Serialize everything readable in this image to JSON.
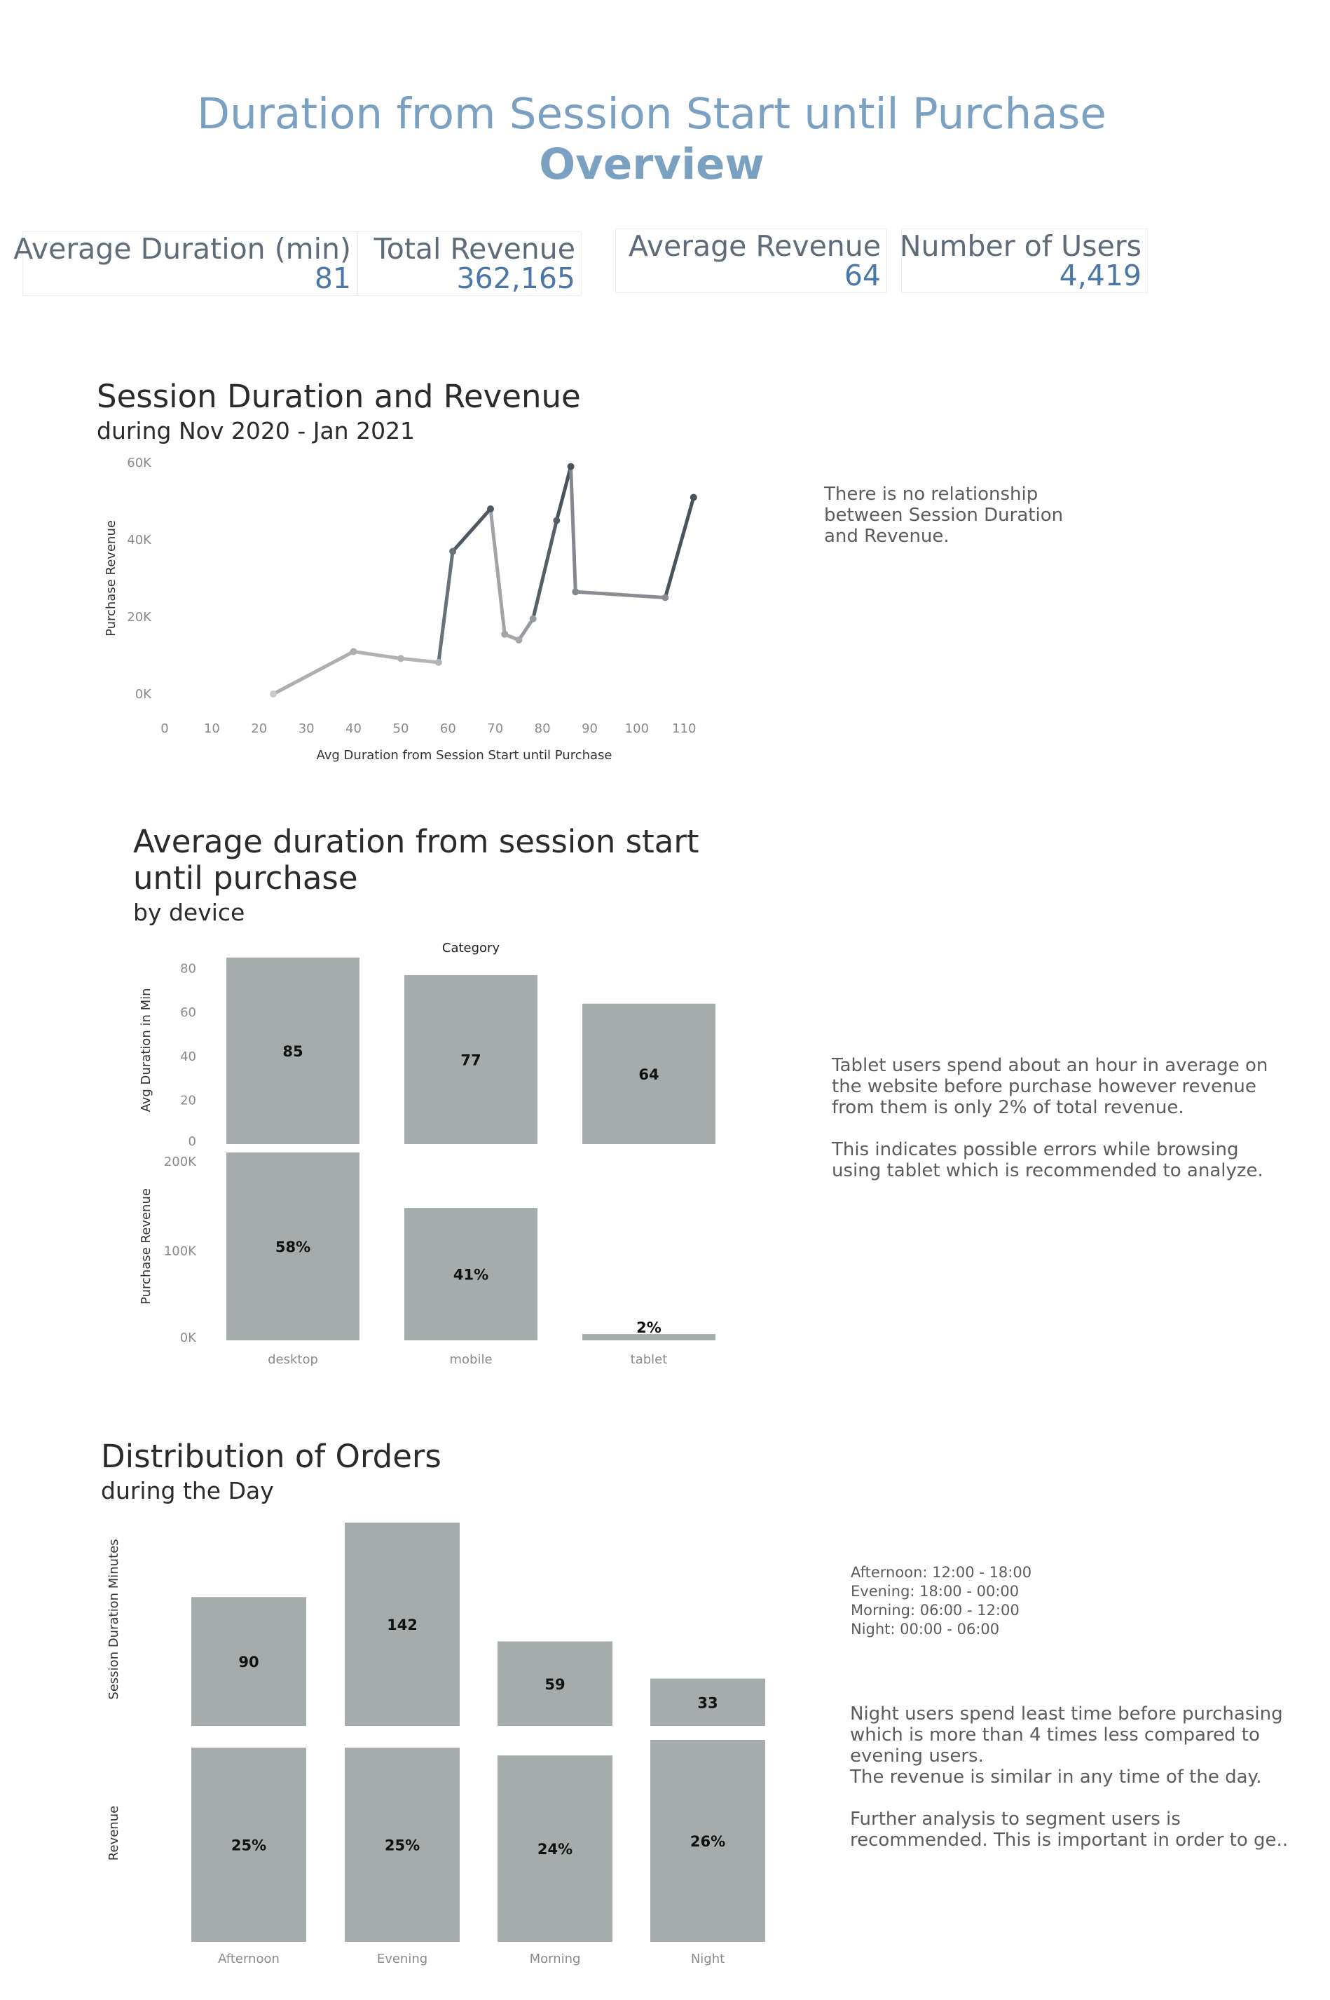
{
  "header": {
    "title": "Duration from Session Start until Purchase",
    "subtitle": "Overview"
  },
  "kpis": [
    {
      "label": "Average Duration (min)",
      "value": "81"
    },
    {
      "label": "Total Revenue",
      "value": "362,165"
    },
    {
      "label": "Average Revenue",
      "value": "64"
    },
    {
      "label": "Number of Users",
      "value": "4,419"
    }
  ],
  "section1": {
    "title": "Session Duration and Revenue",
    "subtitle": "during Nov 2020 - Jan 2021",
    "note": "There is no relationship\nbetween Session Duration\nand Revenue."
  },
  "section2": {
    "title_line1": "Average duration from session start",
    "title_line2": "until purchase",
    "subtitle": "by device",
    "note": "Tablet users spend about an hour in average on\nthe website before purchase however revenue\nfrom them is only 2% of total revenue.\n\nThis indicates possible errors while browsing\nusing tablet which is recommended to analyze."
  },
  "section3": {
    "title": "Distribution of Orders",
    "subtitle": "during the Day",
    "legend_note": "Afternoon: 12:00 - 18:00\nEvening: 18:00 - 00:00\nMorning: 06:00 - 12:00\nNight: 00:00 - 06:00",
    "note": "Night users spend least time before purchasing\nwhich is more than 4 times less compared to\nevening users.\nThe revenue is similar in any time of the day.\n\nFurther analysis to segment users is\nrecommended. This is important in order to ge.."
  },
  "colors": {
    "bar": "#a6acac",
    "line_dark": "#4a525c",
    "line_light": "#c8c8c8",
    "axis_text": "#8a8a8a",
    "title_accent": "#7aa0c2",
    "kpi_value": "#4b77a6"
  },
  "chart_data": [
    {
      "type": "line",
      "xlabel": "Avg Duration from Session Start until Purchase",
      "ylabel": "Purchase Revenue",
      "xlim": [
        0,
        115
      ],
      "ylim": [
        0,
        60000
      ],
      "x_ticks": [
        "0",
        "10",
        "20",
        "30",
        "40",
        "50",
        "60",
        "70",
        "80",
        "90",
        "100",
        "110"
      ],
      "y_ticks": [
        "0K",
        "20K",
        "40K",
        "60K"
      ],
      "points": [
        {
          "x": 23,
          "y": 0
        },
        {
          "x": 40,
          "y": 11000
        },
        {
          "x": 50,
          "y": 9200
        },
        {
          "x": 58,
          "y": 8200
        },
        {
          "x": 61,
          "y": 37000
        },
        {
          "x": 69,
          "y": 48000
        },
        {
          "x": 72,
          "y": 15500
        },
        {
          "x": 75,
          "y": 14000
        },
        {
          "x": 78,
          "y": 19500
        },
        {
          "x": 83,
          "y": 45000
        },
        {
          "x": 86,
          "y": 59000
        },
        {
          "x": 87,
          "y": 26500
        },
        {
          "x": 106,
          "y": 25000
        },
        {
          "x": 112,
          "y": 51000
        }
      ]
    },
    {
      "type": "bar",
      "header": "Category",
      "categories": [
        "desktop",
        "mobile",
        "tablet"
      ],
      "ylabel": "Avg Duration in Min",
      "ylim": [
        0,
        85
      ],
      "y_ticks": [
        "0",
        "20",
        "40",
        "60",
        "80"
      ],
      "values": [
        85,
        77,
        64
      ],
      "labels": [
        "85",
        "77",
        "64"
      ]
    },
    {
      "type": "bar",
      "categories": [
        "desktop",
        "mobile",
        "tablet"
      ],
      "ylabel": "Purchase Revenue",
      "ylim": [
        0,
        210000
      ],
      "y_ticks": [
        "0K",
        "100K",
        "200K"
      ],
      "values": [
        210000,
        148000,
        7000
      ],
      "labels": [
        "58%",
        "41%",
        "2%"
      ]
    },
    {
      "type": "bar",
      "categories": [
        "Afternoon",
        "Evening",
        "Morning",
        "Night"
      ],
      "ylabel": "Session Duration Minutes",
      "values": [
        90,
        142,
        59,
        33
      ],
      "labels": [
        "90",
        "142",
        "59",
        "33"
      ]
    },
    {
      "type": "bar",
      "categories": [
        "Afternoon",
        "Evening",
        "Morning",
        "Night"
      ],
      "ylabel": "Revenue",
      "values": [
        25,
        25,
        24,
        26
      ],
      "labels": [
        "25%",
        "25%",
        "24%",
        "26%"
      ]
    }
  ]
}
